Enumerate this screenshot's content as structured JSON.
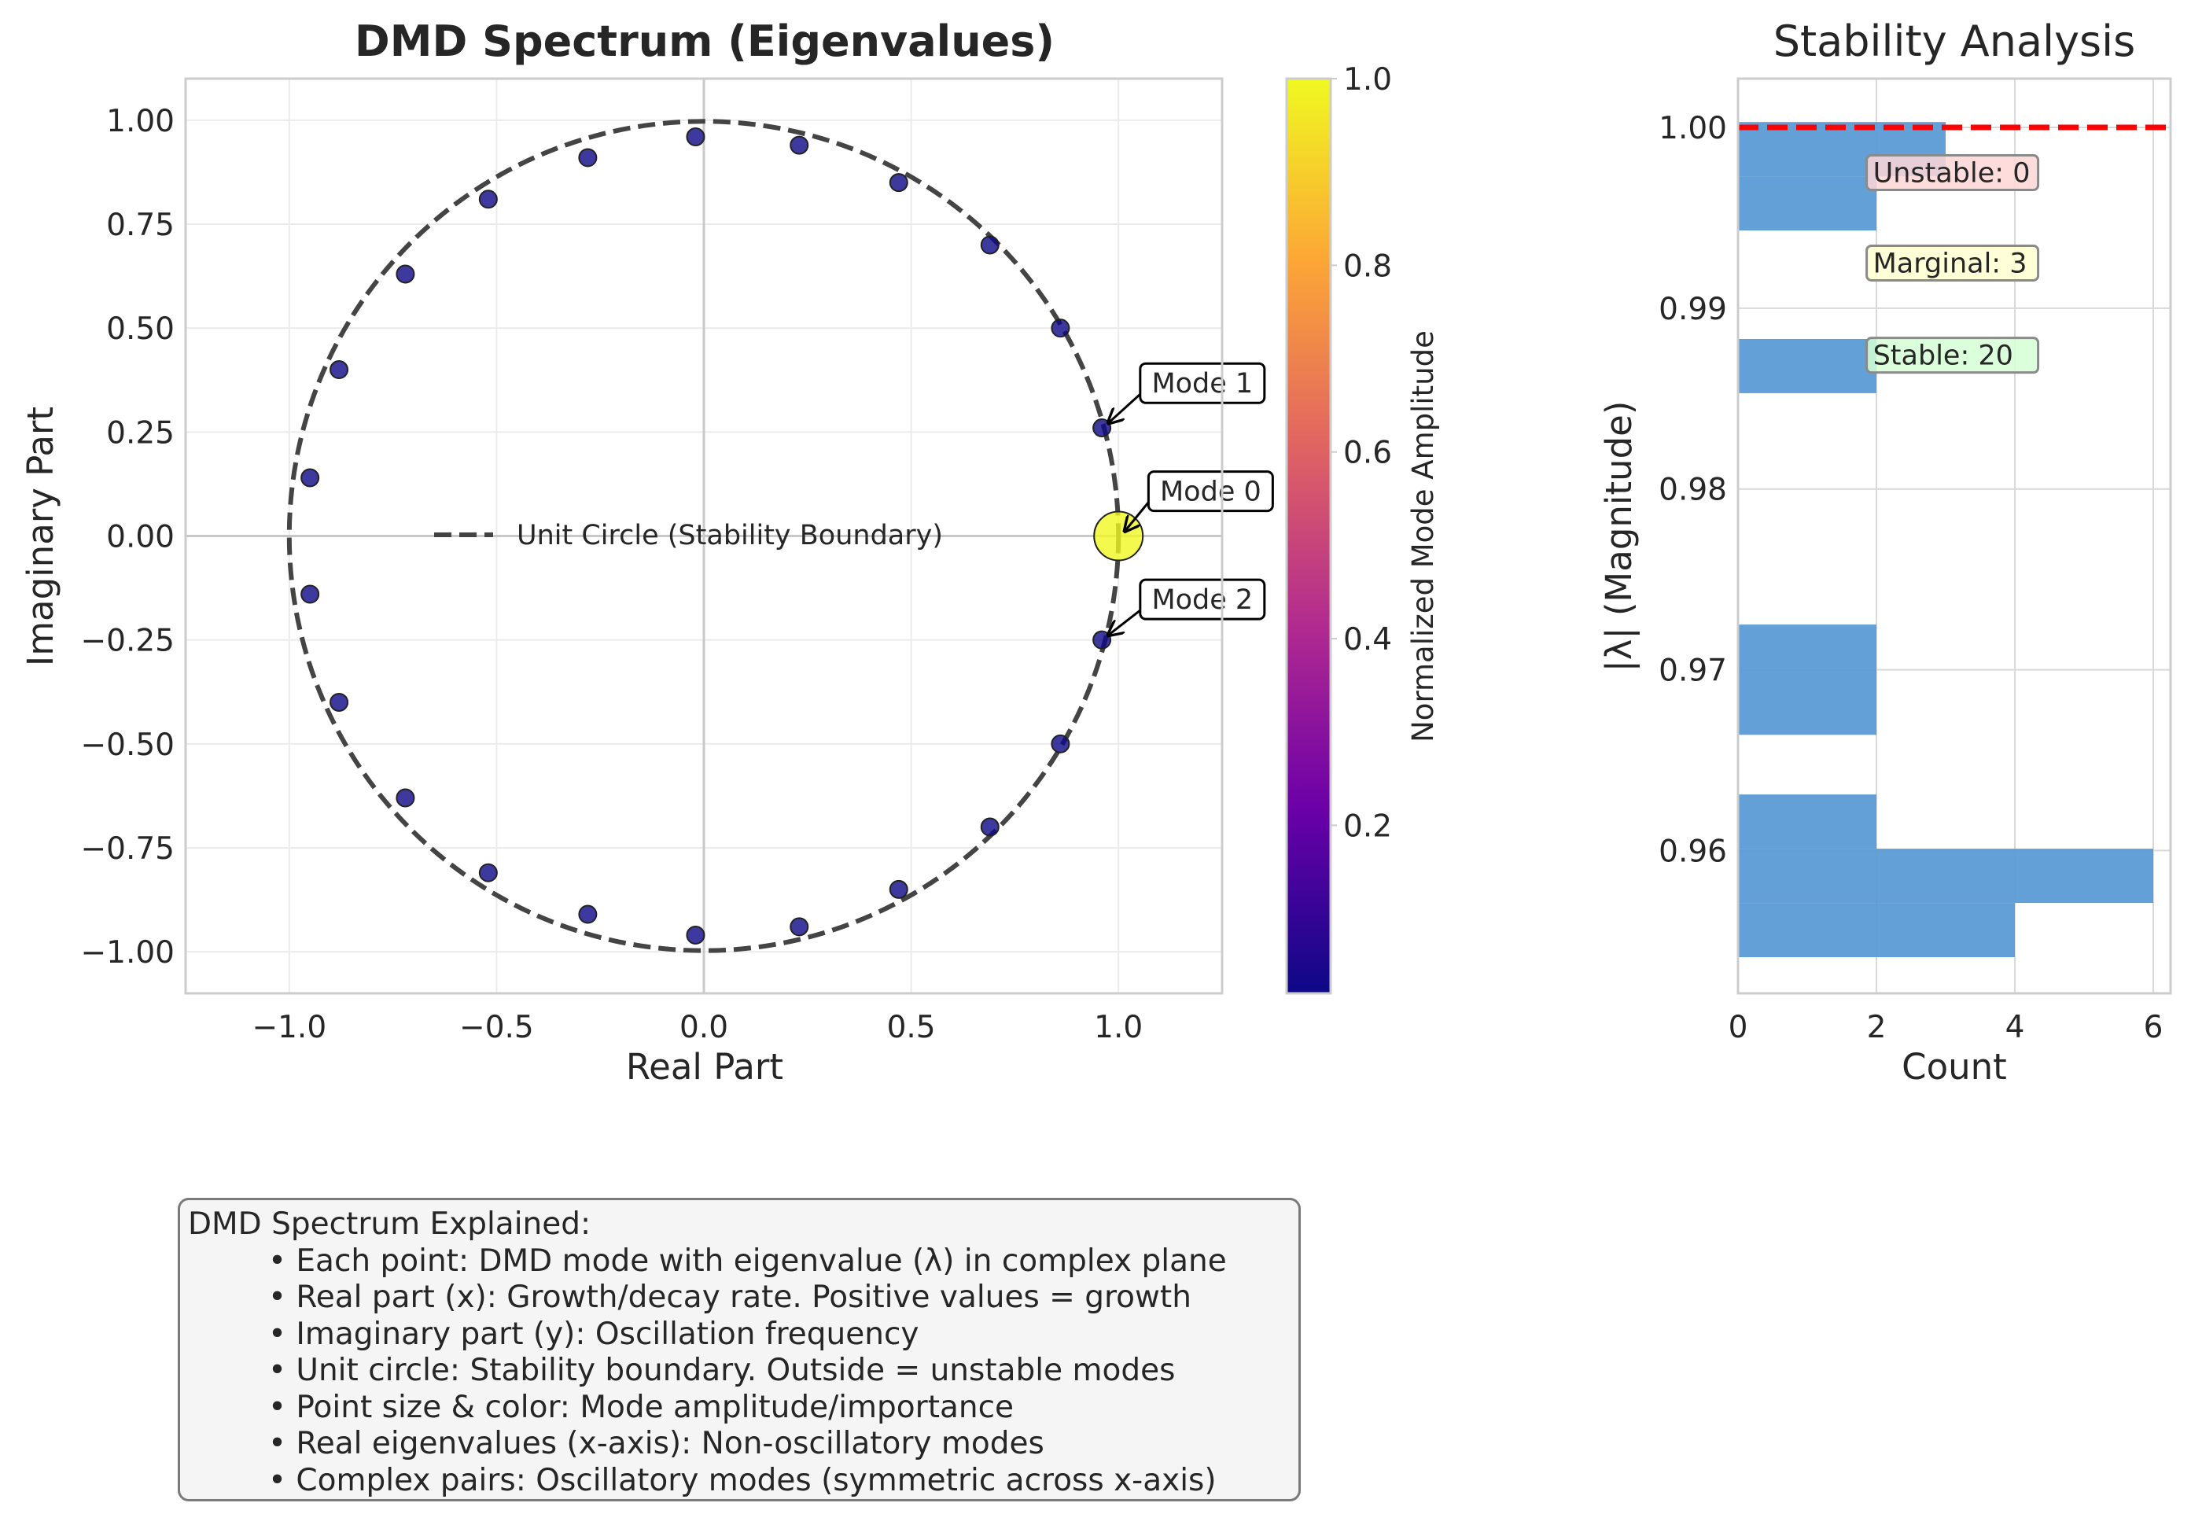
{
  "chart_data": [
    {
      "type": "scatter",
      "title": "DMD Spectrum (Eigenvalues)",
      "xlabel": "Real Part",
      "ylabel": "Imaginary Part",
      "xlim": [
        -1.25,
        1.25
      ],
      "ylim": [
        -1.1,
        1.1
      ],
      "xticks": [
        "−1.0",
        "−0.5",
        "0.0",
        "0.5",
        "1.0"
      ],
      "xtick_values": [
        -1.0,
        -0.5,
        0.0,
        0.5,
        1.0
      ],
      "yticks": [
        "−1.00",
        "−0.75",
        "−0.50",
        "−0.25",
        "0.00",
        "0.25",
        "0.50",
        "0.75",
        "1.00"
      ],
      "ytick_values": [
        -1.0,
        -0.75,
        -0.5,
        -0.25,
        0.0,
        0.25,
        0.5,
        0.75,
        1.0
      ],
      "grid": true,
      "legend": {
        "placement": "center-left",
        "entries": [
          "Unit Circle (Stability Boundary)"
        ]
      },
      "points": [
        {
          "x": 1.0,
          "y": 0.0,
          "amplitude": 1.0
        },
        {
          "x": 0.96,
          "y": 0.26,
          "amplitude": 0.02
        },
        {
          "x": 0.96,
          "y": -0.25,
          "amplitude": 0.02
        },
        {
          "x": 0.86,
          "y": 0.5,
          "amplitude": 0.02
        },
        {
          "x": 0.86,
          "y": -0.5,
          "amplitude": 0.02
        },
        {
          "x": 0.69,
          "y": 0.7,
          "amplitude": 0.02
        },
        {
          "x": 0.69,
          "y": -0.7,
          "amplitude": 0.02
        },
        {
          "x": 0.47,
          "y": 0.85,
          "amplitude": 0.02
        },
        {
          "x": 0.47,
          "y": -0.85,
          "amplitude": 0.02
        },
        {
          "x": 0.23,
          "y": 0.94,
          "amplitude": 0.02
        },
        {
          "x": 0.23,
          "y": -0.94,
          "amplitude": 0.02
        },
        {
          "x": -0.02,
          "y": 0.96,
          "amplitude": 0.02
        },
        {
          "x": -0.02,
          "y": -0.96,
          "amplitude": 0.02
        },
        {
          "x": -0.28,
          "y": 0.91,
          "amplitude": 0.02
        },
        {
          "x": -0.28,
          "y": -0.91,
          "amplitude": 0.02
        },
        {
          "x": -0.52,
          "y": 0.81,
          "amplitude": 0.02
        },
        {
          "x": -0.52,
          "y": -0.81,
          "amplitude": 0.02
        },
        {
          "x": -0.72,
          "y": 0.63,
          "amplitude": 0.02
        },
        {
          "x": -0.72,
          "y": -0.63,
          "amplitude": 0.02
        },
        {
          "x": -0.88,
          "y": 0.4,
          "amplitude": 0.02
        },
        {
          "x": -0.88,
          "y": -0.4,
          "amplitude": 0.02
        },
        {
          "x": -0.95,
          "y": 0.14,
          "amplitude": 0.02
        },
        {
          "x": -0.95,
          "y": -0.14,
          "amplitude": 0.02
        }
      ],
      "annotations": [
        {
          "text": "Mode 0",
          "x": 1.0,
          "y": 0.0,
          "text_x": 1.08,
          "text_y": 0.1
        },
        {
          "text": "Mode 1",
          "x": 0.96,
          "y": 0.26,
          "text_x": 1.06,
          "text_y": 0.36
        },
        {
          "text": "Mode 2",
          "x": 0.96,
          "y": -0.25,
          "text_x": 1.06,
          "text_y": -0.16
        }
      ],
      "colorbar": {
        "label": "Normalized Mode Amplitude",
        "range": [
          0.02,
          1.0
        ],
        "colormap": [
          "#0d0887",
          "#6a00a8",
          "#b12a90",
          "#e16462",
          "#fca636",
          "#f0f921"
        ],
        "ticks": [
          "0.2",
          "0.4",
          "0.6",
          "0.8",
          "1.0"
        ],
        "tick_values": [
          0.2,
          0.4,
          0.6,
          0.8,
          1.0
        ]
      },
      "colors": {
        "circle": "#444444",
        "marker_edge": "#222222"
      }
    },
    {
      "type": "bar",
      "orientation": "horizontal",
      "title": "Stability Analysis",
      "xlabel": "Count",
      "ylabel": "|λ| (Magnitude)",
      "xlim": [
        0,
        6.25
      ],
      "ylim": [
        0.9521,
        1.0027
      ],
      "xticks": [
        "0",
        "2",
        "4",
        "6"
      ],
      "xtick_values": [
        0,
        2,
        4,
        6
      ],
      "yticks": [
        "0.96",
        "0.97",
        "0.98",
        "0.99",
        "1.00"
      ],
      "ytick_values": [
        0.96,
        0.97,
        0.98,
        0.99,
        1.0
      ],
      "grid": true,
      "bins": [
        {
          "low": 0.9541,
          "high": 0.9571,
          "count": 4
        },
        {
          "low": 0.9571,
          "high": 0.9601,
          "count": 6
        },
        {
          "low": 0.9601,
          "high": 0.9631,
          "count": 2
        },
        {
          "low": 0.9664,
          "high": 0.9725,
          "count": 2
        },
        {
          "low": 0.9853,
          "high": 0.9883,
          "count": 2
        },
        {
          "low": 0.9943,
          "high": 0.9973,
          "count": 2
        },
        {
          "low": 0.9973,
          "high": 1.0003,
          "count": 3
        }
      ],
      "reference_line": {
        "y": 1.0,
        "color": "#ff0000",
        "style": "dashed"
      },
      "annotations": [
        {
          "text": "Unstable: 0",
          "x": 1.95,
          "y": 0.9975,
          "color": "#ffd6d6"
        },
        {
          "text": "Marginal: 3",
          "x": 1.95,
          "y": 0.9925,
          "color": "#ffffd0"
        },
        {
          "text": "Stable: 20",
          "x": 1.95,
          "y": 0.9874,
          "color": "#d4ffd4"
        }
      ],
      "colors": {
        "bar": "#5b9bd5"
      }
    }
  ],
  "explanation": {
    "heading": "DMD Spectrum Explained:",
    "items": [
      "• Each point: DMD mode with eigenvalue (λ) in complex plane",
      "• Real part (x): Growth/decay rate. Positive values = growth",
      "• Imaginary part (y): Oscillation frequency",
      "• Unit circle: Stability boundary. Outside = unstable modes",
      "• Point size & color: Mode amplitude/importance",
      "• Real eigenvalues (x-axis): Non-oscillatory modes",
      "• Complex pairs: Oscillatory modes (symmetric across x-axis)"
    ]
  }
}
